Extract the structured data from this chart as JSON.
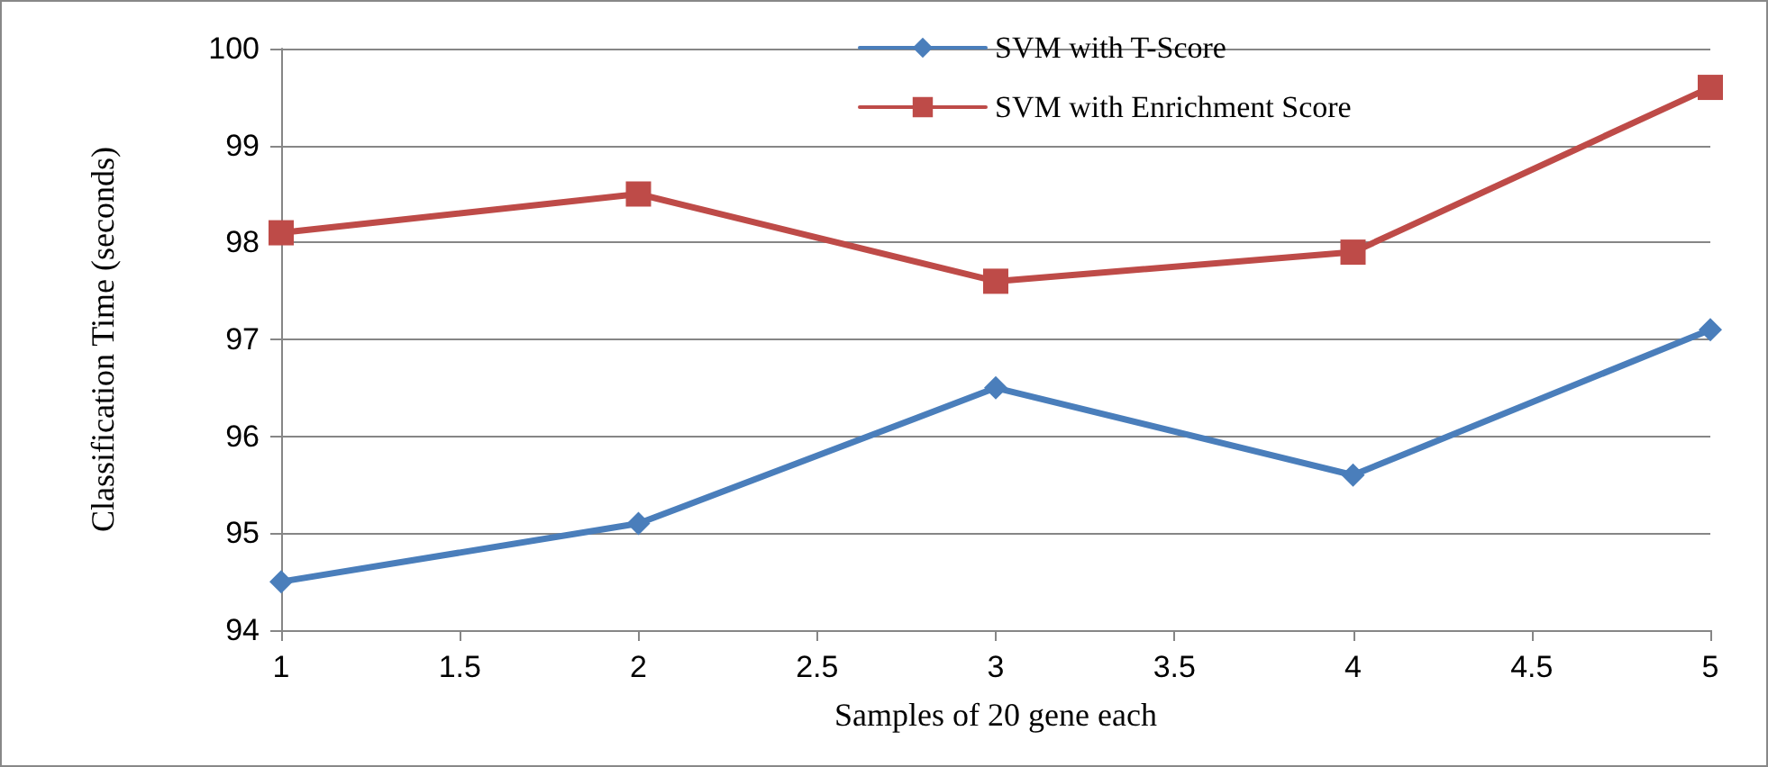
{
  "chart_data": {
    "type": "line",
    "xlabel": "Samples of 20 gene each",
    "ylabel": "Classification Time (seconds)",
    "x": [
      1,
      2,
      3,
      4,
      5
    ],
    "series": [
      {
        "name": "SVM with T-Score",
        "color": "#4a7ebb",
        "marker": "diamond",
        "values": [
          94.5,
          95.1,
          96.5,
          95.6,
          97.1
        ]
      },
      {
        "name": "SVM with Enrichment Score",
        "color": "#be4b48",
        "marker": "square",
        "values": [
          98.1,
          98.5,
          97.6,
          97.9,
          99.6
        ]
      }
    ],
    "xlim": [
      1,
      5
    ],
    "xticks": [
      1,
      1.5,
      2,
      2.5,
      3,
      3.5,
      4,
      4.5,
      5
    ],
    "ylim": [
      94,
      100
    ],
    "yticks": [
      94,
      95,
      96,
      97,
      98,
      99,
      100
    ],
    "grid": "y",
    "legend": "top",
    "line_style": "solid"
  }
}
